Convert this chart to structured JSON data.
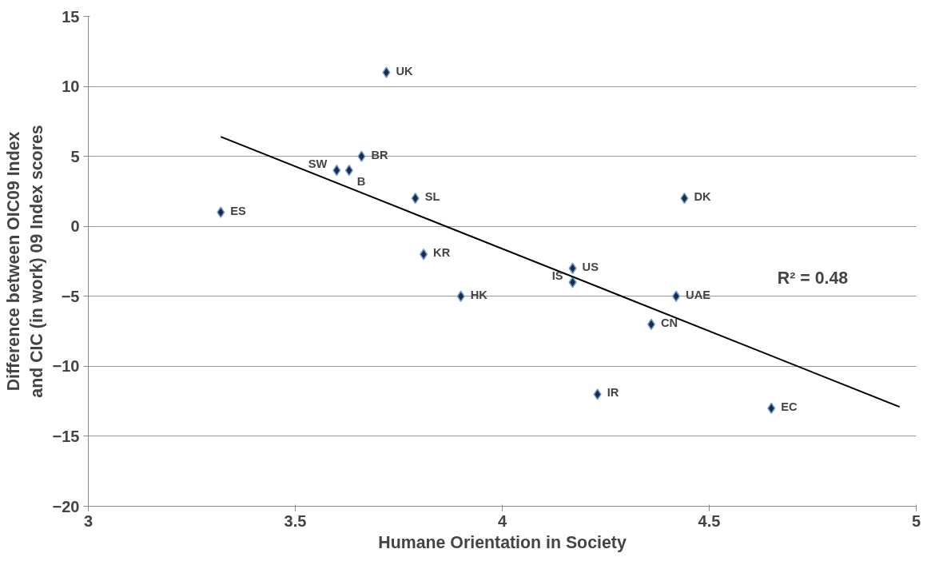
{
  "chart_data": {
    "type": "scatter",
    "xlabel": "Humane Orientation in Society",
    "ylabel": "Difference between OIC09 Index and CIC (in work) 09 Index scores",
    "xlim": [
      3,
      5
    ],
    "ylim": [
      -20,
      15
    ],
    "xticks": [
      3,
      3.5,
      4,
      4.5,
      5
    ],
    "yticks": [
      -20,
      -15,
      -10,
      -5,
      0,
      5,
      10,
      15
    ],
    "grid": "y",
    "series": [
      {
        "color": "#1f2a44",
        "marker": "diamond",
        "x": [
          3.72,
          3.66,
          3.63,
          3.6,
          3.32,
          3.79,
          3.81,
          3.9,
          4.17,
          4.17,
          4.23,
          4.36,
          4.42,
          4.44,
          4.65
        ],
        "values": [
          11,
          5,
          4,
          4,
          1,
          2,
          -2,
          -5,
          -3,
          -4,
          -12,
          -7,
          -5,
          2,
          -13
        ]
      },
      {
        "type": "line",
        "color": "#000000",
        "marker": "none",
        "x": [
          3.32,
          4.96
        ],
        "values": [
          6.4,
          -12.9
        ]
      }
    ],
    "annotations": [
      {
        "text": "UK",
        "x": 3.72,
        "y": 11
      },
      {
        "text": "BR",
        "x": 3.66,
        "y": 5
      },
      {
        "text": "B",
        "x": 3.63,
        "y": 4
      },
      {
        "text": "SW",
        "x": 3.6,
        "y": 4
      },
      {
        "text": "ES",
        "x": 3.32,
        "y": 1
      },
      {
        "text": "SL",
        "x": 3.79,
        "y": 2
      },
      {
        "text": "KR",
        "x": 3.81,
        "y": -2
      },
      {
        "text": "HK",
        "x": 3.9,
        "y": -5
      },
      {
        "text": "US",
        "x": 4.17,
        "y": -3
      },
      {
        "text": "IS",
        "x": 4.17,
        "y": -4
      },
      {
        "text": "IR",
        "x": 4.23,
        "y": -12
      },
      {
        "text": "CN",
        "x": 4.36,
        "y": -7
      },
      {
        "text": "UAE",
        "x": 4.42,
        "y": -5
      },
      {
        "text": "DK",
        "x": 4.44,
        "y": 2
      },
      {
        "text": "EC",
        "x": 4.65,
        "y": -13
      },
      "R² = 0.48"
    ]
  }
}
